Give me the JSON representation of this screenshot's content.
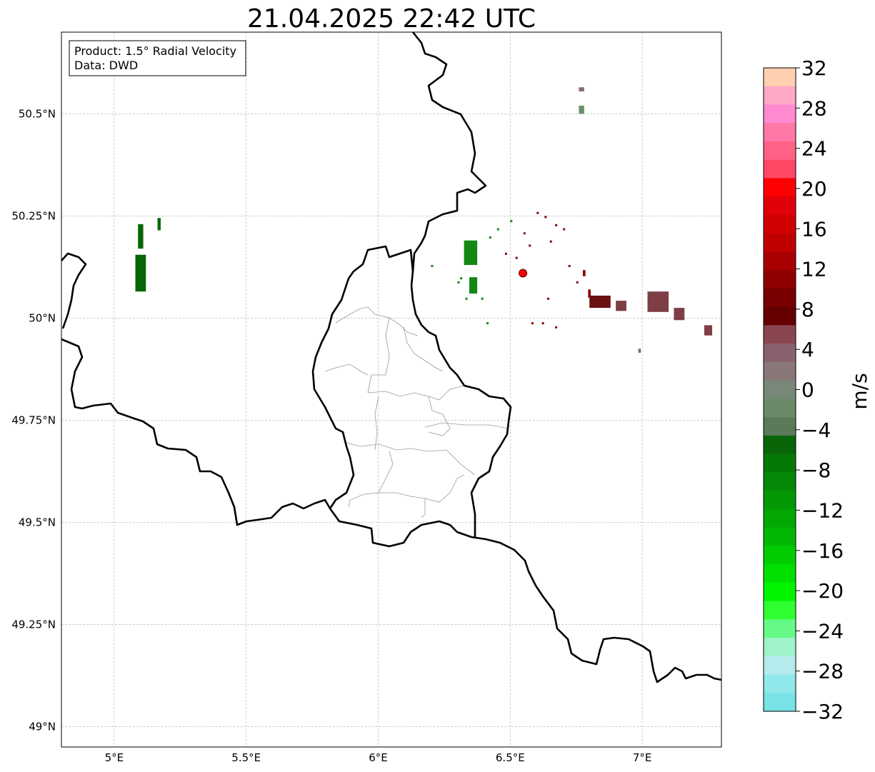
{
  "map": {
    "title": "21.04.2025 22:42 UTC",
    "info_box": {
      "line1": "Product: 1.5° Radial Velocity",
      "line2": "Data: DWD"
    },
    "extent": {
      "lon_min": 4.8,
      "lon_max": 7.3,
      "lat_min": 48.95,
      "lat_max": 50.7
    },
    "lon_ticks": [
      {
        "value": 5.0,
        "label": "5°E"
      },
      {
        "value": 5.5,
        "label": "5.5°E"
      },
      {
        "value": 6.0,
        "label": "6°E"
      },
      {
        "value": 6.5,
        "label": "6.5°E"
      },
      {
        "value": 7.0,
        "label": "7°E"
      }
    ],
    "lat_ticks": [
      {
        "value": 49.0,
        "label": "49°N"
      },
      {
        "value": 49.25,
        "label": "49.25°N"
      },
      {
        "value": 49.5,
        "label": "49.5°N"
      },
      {
        "value": 49.75,
        "label": "49.75°N"
      },
      {
        "value": 50.0,
        "label": "50°N"
      },
      {
        "value": 50.25,
        "label": "50.25°N"
      },
      {
        "value": 50.5,
        "label": "50.5°N"
      }
    ],
    "radar_site": {
      "lon": 6.548,
      "lat": 50.11,
      "color": "#ff0000"
    },
    "borders": {
      "national_color": "#000000",
      "regional_color": "#999999"
    },
    "echoes": [
      {
        "lon": 5.1,
        "lat": 50.2,
        "w": 0.02,
        "h": 0.06,
        "color": "#056605"
      },
      {
        "lon": 5.1,
        "lat": 50.11,
        "w": 0.04,
        "h": 0.09,
        "color": "#056605"
      },
      {
        "lon": 5.17,
        "lat": 50.23,
        "w": 0.012,
        "h": 0.03,
        "color": "#056605"
      },
      {
        "lon": 6.35,
        "lat": 50.16,
        "w": 0.05,
        "h": 0.06,
        "color": "#128812"
      },
      {
        "lon": 6.36,
        "lat": 50.08,
        "w": 0.03,
        "h": 0.04,
        "color": "#128812"
      },
      {
        "lon": 6.84,
        "lat": 50.04,
        "w": 0.08,
        "h": 0.03,
        "color": "#6b1010"
      },
      {
        "lon": 6.92,
        "lat": 50.03,
        "w": 0.04,
        "h": 0.025,
        "color": "#7d3e45"
      },
      {
        "lon": 7.06,
        "lat": 50.04,
        "w": 0.08,
        "h": 0.05,
        "color": "#7d3e45"
      },
      {
        "lon": 7.14,
        "lat": 50.01,
        "w": 0.04,
        "h": 0.03,
        "color": "#7d3e45"
      },
      {
        "lon": 7.25,
        "lat": 49.97,
        "w": 0.03,
        "h": 0.025,
        "color": "#7d3e45"
      },
      {
        "lon": 6.77,
        "lat": 50.51,
        "w": 0.02,
        "h": 0.02,
        "color": "#6b8f6b"
      },
      {
        "lon": 6.77,
        "lat": 50.56,
        "w": 0.02,
        "h": 0.01,
        "color": "#8a6a70"
      },
      {
        "lon": 6.99,
        "lat": 49.92,
        "w": 0.01,
        "h": 0.01,
        "color": "#8a6a70"
      },
      {
        "lon": 6.78,
        "lat": 50.11,
        "w": 0.01,
        "h": 0.015,
        "color": "#8b0000"
      },
      {
        "lon": 6.8,
        "lat": 50.06,
        "w": 0.01,
        "h": 0.02,
        "color": "#8b0000"
      }
    ],
    "scatter_pixels": [
      {
        "lon": 6.42,
        "lat": 50.2,
        "color": "#128812"
      },
      {
        "lon": 6.45,
        "lat": 50.22,
        "color": "#128812"
      },
      {
        "lon": 6.5,
        "lat": 50.24,
        "color": "#128812"
      },
      {
        "lon": 6.55,
        "lat": 50.21,
        "color": "#8b0000"
      },
      {
        "lon": 6.6,
        "lat": 50.26,
        "color": "#8b0000"
      },
      {
        "lon": 6.63,
        "lat": 50.25,
        "color": "#8b0000"
      },
      {
        "lon": 6.67,
        "lat": 50.23,
        "color": "#8b0000"
      },
      {
        "lon": 6.7,
        "lat": 50.22,
        "color": "#8b0000"
      },
      {
        "lon": 6.65,
        "lat": 50.19,
        "color": "#8b0000"
      },
      {
        "lon": 6.72,
        "lat": 50.13,
        "color": "#8b0000"
      },
      {
        "lon": 6.75,
        "lat": 50.09,
        "color": "#8b0000"
      },
      {
        "lon": 6.64,
        "lat": 50.05,
        "color": "#8b0000"
      },
      {
        "lon": 6.62,
        "lat": 49.99,
        "color": "#8b0000"
      },
      {
        "lon": 6.58,
        "lat": 49.99,
        "color": "#8b0000"
      },
      {
        "lon": 6.67,
        "lat": 49.98,
        "color": "#8b0000"
      },
      {
        "lon": 6.2,
        "lat": 50.13,
        "color": "#128812"
      },
      {
        "lon": 6.31,
        "lat": 50.1,
        "color": "#128812"
      },
      {
        "lon": 6.3,
        "lat": 50.09,
        "color": "#128812"
      },
      {
        "lon": 6.33,
        "lat": 50.05,
        "color": "#128812"
      },
      {
        "lon": 6.39,
        "lat": 50.05,
        "color": "#128812"
      },
      {
        "lon": 6.41,
        "lat": 49.99,
        "color": "#128812"
      },
      {
        "lon": 6.48,
        "lat": 50.16,
        "color": "#8b0000"
      },
      {
        "lon": 6.52,
        "lat": 50.15,
        "color": "#8b0000"
      },
      {
        "lon": 6.57,
        "lat": 50.18,
        "color": "#8b0000"
      }
    ]
  },
  "colorbar": {
    "label": "m/s",
    "vmin": -32,
    "vmax": 32,
    "ticks": [
      "32",
      "28",
      "24",
      "20",
      "16",
      "12",
      "8",
      "4",
      "0",
      "−4",
      "−8",
      "−12",
      "−16",
      "−20",
      "−24",
      "−28",
      "−32"
    ],
    "tick_values": [
      32,
      28,
      24,
      20,
      16,
      12,
      8,
      4,
      0,
      -4,
      -8,
      -12,
      -16,
      -20,
      -24,
      -28,
      -32
    ],
    "colors_top_to_bottom": [
      "#ffd0b0",
      "#ffa8c8",
      "#ff8ad0",
      "#ff78a8",
      "#ff6284",
      "#ff4866",
      "#ff0000",
      "#e00008",
      "#d00000",
      "#c00000",
      "#a80000",
      "#900000",
      "#780000",
      "#640000",
      "#8a4650",
      "#8a626e",
      "#8a7878",
      "#788878",
      "#6a8a6a",
      "#5a7a5a",
      "#086608",
      "#067806",
      "#058805",
      "#049804",
      "#03a803",
      "#02b802",
      "#01cc01",
      "#00e000",
      "#00f400",
      "#30ff30",
      "#66f988",
      "#a0f2c8",
      "#b4ecee",
      "#90e8ea",
      "#78e2e6"
    ]
  }
}
